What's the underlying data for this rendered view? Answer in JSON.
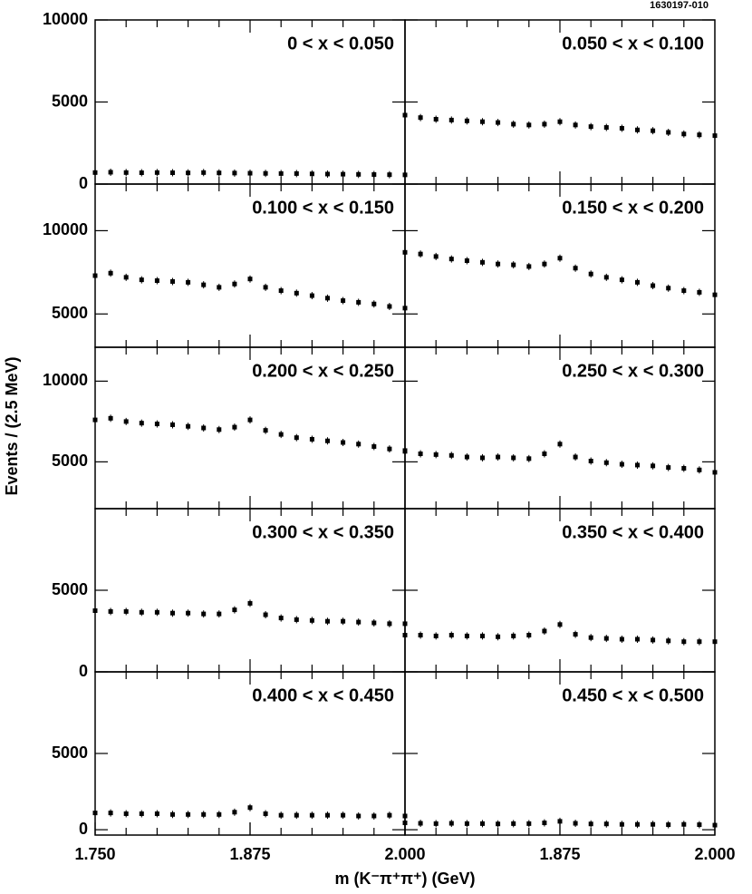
{
  "figure_id": "1630197-010",
  "ylabel": "Events / (2.5 MeV)",
  "xlabel": "m (K⁻π⁺π⁺) (GeV)",
  "chart_data": [
    {
      "type": "scatter",
      "title": "0 < x < 0.050",
      "color": "#000000",
      "xlim": [
        1.75,
        2.0
      ],
      "ylim": [
        0,
        10000
      ],
      "yticks": [
        0,
        5000,
        10000
      ],
      "x": [
        1.75,
        1.7625,
        1.775,
        1.7875,
        1.8,
        1.8125,
        1.825,
        1.8375,
        1.85,
        1.8625,
        1.875,
        1.8875,
        1.9,
        1.9125,
        1.925,
        1.9375,
        1.95,
        1.9625,
        1.975,
        1.9875,
        2.0
      ],
      "values": [
        700,
        720,
        700,
        690,
        700,
        690,
        680,
        700,
        680,
        670,
        660,
        650,
        640,
        640,
        620,
        610,
        600,
        590,
        580,
        570,
        560
      ]
    },
    {
      "type": "scatter",
      "title": "0.050 < x < 0.100",
      "color": "#000000",
      "xlim": [
        1.75,
        2.0
      ],
      "ylim": [
        0,
        10000
      ],
      "x": [
        1.75,
        1.7625,
        1.775,
        1.7875,
        1.8,
        1.8125,
        1.825,
        1.8375,
        1.85,
        1.8625,
        1.875,
        1.8875,
        1.9,
        1.9125,
        1.925,
        1.9375,
        1.95,
        1.9625,
        1.975,
        1.9875,
        2.0
      ],
      "values": [
        4200,
        4050,
        3950,
        3900,
        3850,
        3800,
        3750,
        3650,
        3600,
        3650,
        3800,
        3600,
        3500,
        3450,
        3400,
        3300,
        3250,
        3150,
        3050,
        3000,
        2950
      ]
    },
    {
      "type": "scatter",
      "title": "0.100 < x < 0.150",
      "color": "#000000",
      "xlim": [
        1.75,
        2.0
      ],
      "ylim": [
        3000,
        12800
      ],
      "yticks": [
        5000,
        10000
      ],
      "x": [
        1.75,
        1.7625,
        1.775,
        1.7875,
        1.8,
        1.8125,
        1.825,
        1.8375,
        1.85,
        1.8625,
        1.875,
        1.8875,
        1.9,
        1.9125,
        1.925,
        1.9375,
        1.95,
        1.9625,
        1.975,
        1.9875,
        2.0
      ],
      "values": [
        7300,
        7450,
        7200,
        7050,
        7000,
        6950,
        6900,
        6750,
        6600,
        6800,
        7100,
        6600,
        6400,
        6250,
        6100,
        5950,
        5800,
        5700,
        5600,
        5450,
        5350
      ]
    },
    {
      "type": "scatter",
      "title": "0.150 < x < 0.200",
      "color": "#000000",
      "xlim": [
        1.75,
        2.0
      ],
      "ylim": [
        3000,
        12800
      ],
      "x": [
        1.75,
        1.7625,
        1.775,
        1.7875,
        1.8,
        1.8125,
        1.825,
        1.8375,
        1.85,
        1.8625,
        1.875,
        1.8875,
        1.9,
        1.9125,
        1.925,
        1.9375,
        1.95,
        1.9625,
        1.975,
        1.9875,
        2.0
      ],
      "values": [
        8700,
        8600,
        8450,
        8300,
        8200,
        8100,
        8000,
        7950,
        7850,
        8000,
        8350,
        7750,
        7400,
        7200,
        7050,
        6900,
        6700,
        6550,
        6400,
        6300,
        6150
      ]
    },
    {
      "type": "scatter",
      "title": "0.200 < x < 0.250",
      "color": "#000000",
      "xlim": [
        1.75,
        2.0
      ],
      "ylim": [
        2100,
        12100
      ],
      "yticks": [
        5000,
        10000
      ],
      "x": [
        1.75,
        1.7625,
        1.775,
        1.7875,
        1.8,
        1.8125,
        1.825,
        1.8375,
        1.85,
        1.8625,
        1.875,
        1.8875,
        1.9,
        1.9125,
        1.925,
        1.9375,
        1.95,
        1.9625,
        1.975,
        1.9875,
        2.0
      ],
      "values": [
        7600,
        7700,
        7500,
        7400,
        7350,
        7300,
        7200,
        7100,
        7000,
        7150,
        7600,
        6950,
        6700,
        6500,
        6400,
        6300,
        6200,
        6100,
        5950,
        5800,
        5650
      ]
    },
    {
      "type": "scatter",
      "title": "0.250 < x < 0.300",
      "color": "#000000",
      "xlim": [
        1.75,
        2.0
      ],
      "ylim": [
        2100,
        12100
      ],
      "x": [
        1.75,
        1.7625,
        1.775,
        1.7875,
        1.8,
        1.8125,
        1.825,
        1.8375,
        1.85,
        1.8625,
        1.875,
        1.8875,
        1.9,
        1.9125,
        1.925,
        1.9375,
        1.95,
        1.9625,
        1.975,
        1.9875,
        2.0
      ],
      "values": [
        5700,
        5500,
        5450,
        5400,
        5300,
        5250,
        5300,
        5250,
        5200,
        5500,
        6100,
        5300,
        5050,
        4950,
        4850,
        4800,
        4750,
        4650,
        4600,
        4500,
        4350
      ]
    },
    {
      "type": "scatter",
      "title": "0.300 < x < 0.350",
      "color": "#000000",
      "xlim": [
        1.75,
        2.0
      ],
      "ylim": [
        0,
        10000
      ],
      "yticks": [
        0,
        5000
      ],
      "x": [
        1.75,
        1.7625,
        1.775,
        1.7875,
        1.8,
        1.8125,
        1.825,
        1.8375,
        1.85,
        1.8625,
        1.875,
        1.8875,
        1.9,
        1.9125,
        1.925,
        1.9375,
        1.95,
        1.9625,
        1.975,
        1.9875,
        2.0
      ],
      "values": [
        3750,
        3700,
        3700,
        3650,
        3650,
        3600,
        3600,
        3550,
        3550,
        3800,
        4200,
        3500,
        3300,
        3200,
        3150,
        3100,
        3100,
        3050,
        3000,
        2950,
        2950
      ]
    },
    {
      "type": "scatter",
      "title": "0.350 < x < 0.400",
      "color": "#000000",
      "xlim": [
        1.75,
        2.0
      ],
      "ylim": [
        0,
        10000
      ],
      "x": [
        1.75,
        1.7625,
        1.775,
        1.7875,
        1.8,
        1.8125,
        1.825,
        1.8375,
        1.85,
        1.8625,
        1.875,
        1.8875,
        1.9,
        1.9125,
        1.925,
        1.9375,
        1.95,
        1.9625,
        1.975,
        1.9875,
        2.0
      ],
      "values": [
        2250,
        2250,
        2200,
        2250,
        2200,
        2200,
        2150,
        2200,
        2250,
        2500,
        2900,
        2300,
        2100,
        2050,
        2000,
        2000,
        1950,
        1900,
        1850,
        1850,
        1850
      ]
    },
    {
      "type": "scatter",
      "title": "0.400 < x < 0.450",
      "color": "#000000",
      "xlim": [
        1.75,
        2.0
      ],
      "ylim": [
        -350,
        10350
      ],
      "yticks": [
        0,
        5000
      ],
      "xticks": [
        {
          "value": 1.75,
          "label": "1.750"
        },
        {
          "value": 1.875,
          "label": "1.875"
        },
        {
          "value": 2.0,
          "label": "2.000"
        }
      ],
      "x": [
        1.75,
        1.7625,
        1.775,
        1.7875,
        1.8,
        1.8125,
        1.825,
        1.8375,
        1.85,
        1.8625,
        1.875,
        1.8875,
        1.9,
        1.9125,
        1.925,
        1.9375,
        1.95,
        1.9625,
        1.975,
        1.9875,
        2.0
      ],
      "values": [
        1100,
        1100,
        1050,
        1050,
        1050,
        1000,
        1000,
        1000,
        1000,
        1150,
        1450,
        1050,
        950,
        950,
        950,
        950,
        950,
        900,
        900,
        950,
        900
      ]
    },
    {
      "type": "scatter",
      "title": "0.450 < x < 0.500",
      "color": "#000000",
      "xlim": [
        1.75,
        2.0
      ],
      "ylim": [
        -350,
        10350
      ],
      "xticks": [
        {
          "value": 1.875,
          "label": "1.875"
        },
        {
          "value": 2.0,
          "label": "2.000"
        }
      ],
      "x": [
        1.75,
        1.7625,
        1.775,
        1.7875,
        1.8,
        1.8125,
        1.825,
        1.8375,
        1.85,
        1.8625,
        1.875,
        1.8875,
        1.9,
        1.9125,
        1.925,
        1.9375,
        1.95,
        1.9625,
        1.975,
        1.9875,
        2.0
      ],
      "values": [
        450,
        420,
        400,
        420,
        400,
        400,
        380,
        400,
        400,
        450,
        550,
        420,
        380,
        380,
        350,
        350,
        350,
        330,
        350,
        330,
        300
      ]
    }
  ]
}
